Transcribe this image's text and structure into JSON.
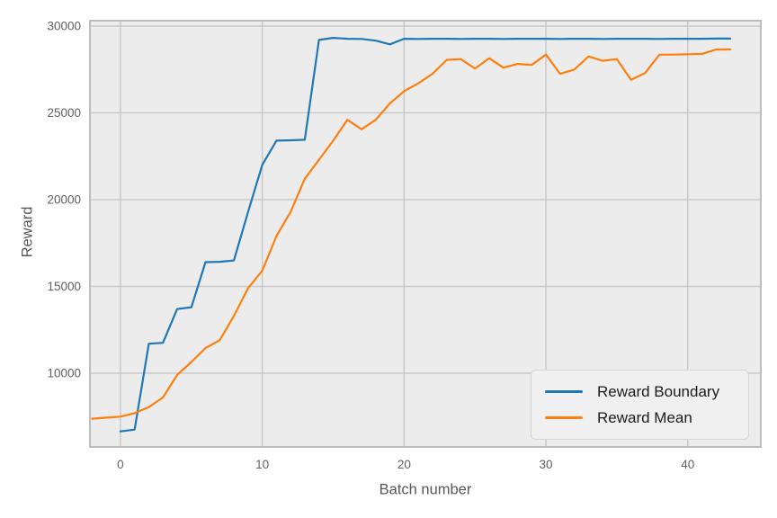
{
  "figure": {
    "background": "#ffffff",
    "plot_background": "#ececec",
    "grid_color": "#c9c9c9",
    "spine_color": "#bdbdbd",
    "tick_label_color": "#616161",
    "axis_label_color": "#585858"
  },
  "axes": {
    "xlabel": "Batch number",
    "ylabel": "Reward"
  },
  "legend": {
    "items": [
      {
        "label": "Reward Boundary",
        "color": "#1f77b4"
      },
      {
        "label": "Reward Mean",
        "color": "#ff7f0e"
      }
    ]
  },
  "chart_data": {
    "type": "line",
    "title": "",
    "xlabel": "Batch number",
    "ylabel": "Reward",
    "grid": true,
    "legend_position": "lower right",
    "x_ticks": [
      0,
      10,
      20,
      30,
      40
    ],
    "y_ticks": [
      10000,
      15000,
      20000,
      25000,
      30000
    ],
    "xlim": [
      -2.15,
      45.15
    ],
    "ylim": [
      5752,
      30311
    ],
    "series": [
      {
        "name": "Reward Boundary",
        "color": "#1f77b4",
        "x": [
          0,
          1,
          2,
          3,
          4,
          5,
          6,
          7,
          8,
          9,
          10,
          11,
          12,
          13,
          14,
          15,
          16,
          17,
          18,
          19,
          20,
          21,
          22,
          23,
          24,
          25,
          26,
          27,
          28,
          29,
          30,
          31,
          32,
          33,
          34,
          35,
          36,
          37,
          38,
          39,
          40,
          41,
          42,
          43
        ],
        "values": [
          6650,
          6750,
          11700,
          11750,
          13700,
          13800,
          16400,
          16420,
          16500,
          19300,
          22000,
          23400,
          23420,
          23450,
          29200,
          29320,
          29270,
          29260,
          29160,
          28950,
          29270,
          29260,
          29270,
          29270,
          29260,
          29270,
          29270,
          29260,
          29270,
          29270,
          29270,
          29260,
          29270,
          29270,
          29260,
          29270,
          29270,
          29270,
          29260,
          29270,
          29270,
          29270,
          29280,
          29280
        ]
      },
      {
        "name": "Reward Mean",
        "color": "#ff7f0e",
        "x": [
          -2,
          -1,
          0,
          1,
          2,
          3,
          4,
          5,
          6,
          7,
          8,
          9,
          10,
          11,
          12,
          13,
          14,
          15,
          16,
          17,
          18,
          19,
          20,
          21,
          22,
          23,
          24,
          25,
          26,
          27,
          28,
          29,
          30,
          31,
          32,
          33,
          34,
          35,
          36,
          37,
          38,
          39,
          40,
          41,
          42,
          43
        ],
        "values": [
          7380,
          7440,
          7500,
          7700,
          8050,
          8600,
          9900,
          10650,
          11450,
          11900,
          13300,
          14900,
          15900,
          17900,
          19300,
          21200,
          22300,
          23400,
          24600,
          24050,
          24600,
          25550,
          26250,
          26700,
          27250,
          28050,
          28100,
          27550,
          28150,
          27600,
          27820,
          27760,
          28360,
          27250,
          27500,
          28250,
          28000,
          28100,
          26900,
          27300,
          28350,
          28360,
          28380,
          28400,
          28650,
          28660
        ]
      }
    ]
  }
}
